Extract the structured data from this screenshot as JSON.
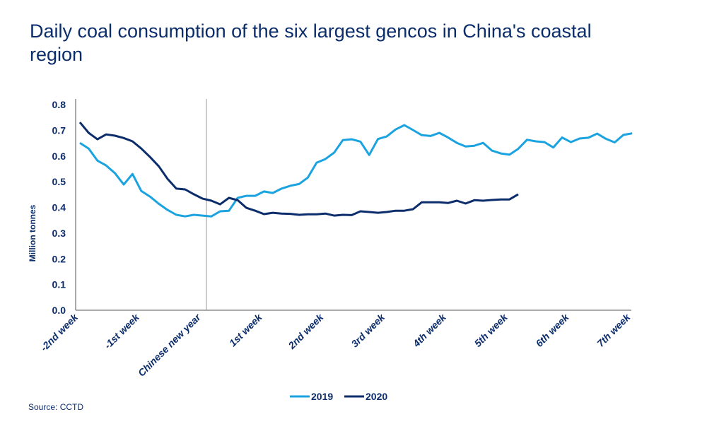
{
  "chart_data": {
    "type": "line",
    "title": "Daily coal consumption of the six largest gencos in China's coastal region",
    "ylabel": "Million tonnes",
    "xlabel": "",
    "ylim": [
      0,
      0.8
    ],
    "yticks": [
      "0.0",
      "0.1",
      "0.2",
      "0.3",
      "0.4",
      "0.5",
      "0.6",
      "0.7",
      "0.8"
    ],
    "xtick_labels": [
      "-2nd week",
      "-1st week",
      "Chinese new year",
      "1st week",
      "2nd week",
      "3rd week",
      "4th week",
      "5th week",
      "6th week",
      "7th week"
    ],
    "grid": false,
    "legend_position": "bottom",
    "series": [
      {
        "name": "2019",
        "color": "#1ba3e0",
        "values": [
          0.651,
          0.629,
          0.582,
          0.563,
          0.533,
          0.489,
          0.53,
          0.464,
          0.442,
          0.414,
          0.39,
          0.371,
          0.365,
          0.371,
          0.368,
          0.365,
          0.385,
          0.387,
          0.437,
          0.445,
          0.445,
          0.462,
          0.456,
          0.473,
          0.484,
          0.491,
          0.516,
          0.574,
          0.588,
          0.613,
          0.662,
          0.665,
          0.656,
          0.604,
          0.666,
          0.676,
          0.703,
          0.72,
          0.701,
          0.681,
          0.678,
          0.69,
          0.672,
          0.651,
          0.637,
          0.64,
          0.651,
          0.621,
          0.61,
          0.605,
          0.628,
          0.663,
          0.657,
          0.654,
          0.633,
          0.672,
          0.654,
          0.668,
          0.671,
          0.687,
          0.667,
          0.653,
          0.682,
          0.688
        ]
      },
      {
        "name": "2020",
        "color": "#0c2d6b",
        "values": [
          0.731,
          0.69,
          0.665,
          0.684,
          0.679,
          0.67,
          0.657,
          0.629,
          0.596,
          0.56,
          0.511,
          0.473,
          0.47,
          0.451,
          0.434,
          0.426,
          0.412,
          0.437,
          0.428,
          0.398,
          0.387,
          0.374,
          0.379,
          0.376,
          0.375,
          0.371,
          0.373,
          0.373,
          0.376,
          0.368,
          0.371,
          0.37,
          0.385,
          0.382,
          0.379,
          0.382,
          0.387,
          0.387,
          0.393,
          0.42,
          0.42,
          0.42,
          0.417,
          0.426,
          0.415,
          0.428,
          0.426,
          0.429,
          0.431,
          0.431,
          0.451
        ]
      }
    ]
  },
  "header": {
    "title": "Daily coal consumption of the six largest gencos in China's coastal region"
  },
  "footer": {
    "source": "Source: CCTD"
  }
}
